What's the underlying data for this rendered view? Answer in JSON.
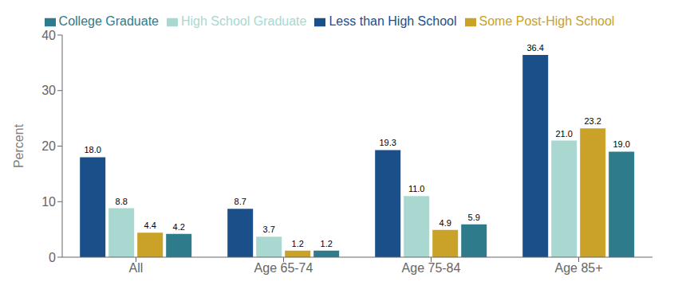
{
  "chart_data": {
    "type": "bar",
    "categories": [
      "All",
      "Age 65-74",
      "Age 75-84",
      "Age 85+"
    ],
    "series": [
      {
        "name": "Less than High School",
        "color": "#1b4f8a",
        "values": [
          18.0,
          8.7,
          19.3,
          36.4
        ],
        "value_labels": [
          "18.0",
          "8.7",
          "19.3",
          "36.4"
        ]
      },
      {
        "name": "High School Graduate",
        "color": "#a8d8d0",
        "values": [
          8.8,
          3.7,
          11.0,
          21.0
        ],
        "value_labels": [
          "8.8",
          "3.7",
          "11.0",
          "21.0"
        ]
      },
      {
        "name": "Some Post-High School",
        "color": "#c9a227",
        "values": [
          4.4,
          1.2,
          4.9,
          23.2
        ],
        "value_labels": [
          "4.4",
          "1.2",
          "4.9",
          "23.2"
        ]
      },
      {
        "name": "College Graduate",
        "color": "#2e7b8c",
        "values": [
          4.2,
          1.2,
          5.9,
          19.0
        ],
        "value_labels": [
          "4.2",
          "1.2",
          "5.9",
          "19.0"
        ]
      }
    ],
    "ylabel": "Percent",
    "ylim": [
      0,
      40
    ],
    "yticks": [
      0,
      10,
      20,
      30,
      40
    ],
    "data_labels": true,
    "grid": false,
    "legend": "top"
  }
}
